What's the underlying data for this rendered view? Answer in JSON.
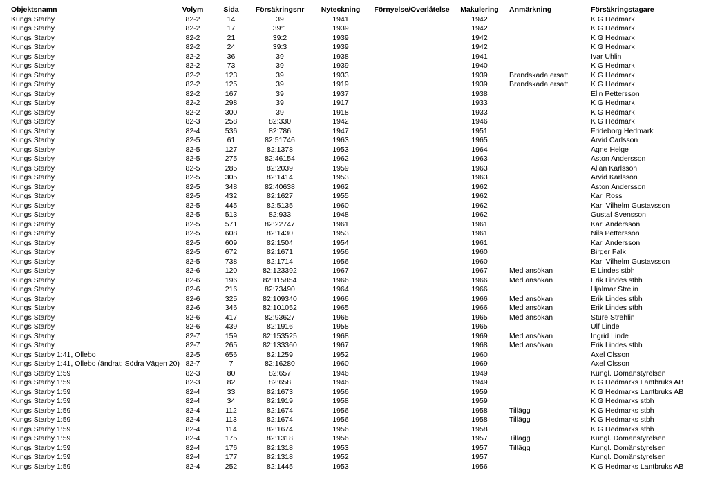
{
  "headers": {
    "obj": "Objektsnamn",
    "vol": "Volym",
    "sida": "Sida",
    "fnr": "Försäkringsnr",
    "nyt": "Nyteckning",
    "for": "Förnyelse/Överlåtelse",
    "mak": "Makulering",
    "anm": "Anmärkning",
    "tag": "Försäkringstagare"
  },
  "rows": [
    {
      "obj": "Kungs Starby",
      "vol": "82-2",
      "sida": "14",
      "fnr": "39",
      "nyt": "1941",
      "for": "",
      "mak": "1942",
      "anm": "",
      "tag": "K G Hedmark"
    },
    {
      "obj": "Kungs Starby",
      "vol": "82-2",
      "sida": "17",
      "fnr": "39:1",
      "nyt": "1939",
      "for": "",
      "mak": "1942",
      "anm": "",
      "tag": "K G Hedmark"
    },
    {
      "obj": "Kungs Starby",
      "vol": "82-2",
      "sida": "21",
      "fnr": "39:2",
      "nyt": "1939",
      "for": "",
      "mak": "1942",
      "anm": "",
      "tag": "K G Hedmark"
    },
    {
      "obj": "Kungs Starby",
      "vol": "82-2",
      "sida": "24",
      "fnr": "39:3",
      "nyt": "1939",
      "for": "",
      "mak": "1942",
      "anm": "",
      "tag": "K G Hedmark"
    },
    {
      "obj": "Kungs Starby",
      "vol": "82-2",
      "sida": "36",
      "fnr": "39",
      "nyt": "1938",
      "for": "",
      "mak": "1941",
      "anm": "",
      "tag": "Ivar Uhlin"
    },
    {
      "obj": "Kungs Starby",
      "vol": "82-2",
      "sida": "73",
      "fnr": "39",
      "nyt": "1939",
      "for": "",
      "mak": "1940",
      "anm": "",
      "tag": "K G Hedmark"
    },
    {
      "obj": "Kungs Starby",
      "vol": "82-2",
      "sida": "123",
      "fnr": "39",
      "nyt": "1933",
      "for": "",
      "mak": "1939",
      "anm": "Brandskada ersatt",
      "tag": "K G Hedmark"
    },
    {
      "obj": "Kungs Starby",
      "vol": "82-2",
      "sida": "125",
      "fnr": "39",
      "nyt": "1919",
      "for": "",
      "mak": "1939",
      "anm": "Brandskada ersatt",
      "tag": "K G Hedmark"
    },
    {
      "obj": "Kungs Starby",
      "vol": "82-2",
      "sida": "167",
      "fnr": "39",
      "nyt": "1937",
      "for": "",
      "mak": "1938",
      "anm": "",
      "tag": "Elin Pettersson"
    },
    {
      "obj": "Kungs Starby",
      "vol": "82-2",
      "sida": "298",
      "fnr": "39",
      "nyt": "1917",
      "for": "",
      "mak": "1933",
      "anm": "",
      "tag": "K G Hedmark"
    },
    {
      "obj": "Kungs Starby",
      "vol": "82-2",
      "sida": "300",
      "fnr": "39",
      "nyt": "1918",
      "for": "",
      "mak": "1933",
      "anm": "",
      "tag": "K G Hedmark"
    },
    {
      "obj": "Kungs Starby",
      "vol": "82-3",
      "sida": "258",
      "fnr": "82:330",
      "nyt": "1942",
      "for": "",
      "mak": "1946",
      "anm": "",
      "tag": "K G Hedmark"
    },
    {
      "obj": "Kungs Starby",
      "vol": "82-4",
      "sida": "536",
      "fnr": "82:786",
      "nyt": "1947",
      "for": "",
      "mak": "1951",
      "anm": "",
      "tag": "Frideborg Hedmark"
    },
    {
      "obj": "Kungs Starby",
      "vol": "82-5",
      "sida": "61",
      "fnr": "82:51746",
      "nyt": "1963",
      "for": "",
      "mak": "1965",
      "anm": "",
      "tag": "Arvid Carlsson"
    },
    {
      "obj": "Kungs Starby",
      "vol": "82-5",
      "sida": "127",
      "fnr": "82:1378",
      "nyt": "1953",
      "for": "",
      "mak": "1964",
      "anm": "",
      "tag": "Agne Helge"
    },
    {
      "obj": "Kungs Starby",
      "vol": "82-5",
      "sida": "275",
      "fnr": "82:46154",
      "nyt": "1962",
      "for": "",
      "mak": "1963",
      "anm": "",
      "tag": "Aston Andersson"
    },
    {
      "obj": "Kungs Starby",
      "vol": "82-5",
      "sida": "285",
      "fnr": "82:2039",
      "nyt": "1959",
      "for": "",
      "mak": "1963",
      "anm": "",
      "tag": "Allan Karlsson"
    },
    {
      "obj": "Kungs Starby",
      "vol": "82-5",
      "sida": "305",
      "fnr": "82:1414",
      "nyt": "1953",
      "for": "",
      "mak": "1963",
      "anm": "",
      "tag": "Arvid Karlsson"
    },
    {
      "obj": "Kungs Starby",
      "vol": "82-5",
      "sida": "348",
      "fnr": "82:40638",
      "nyt": "1962",
      "for": "",
      "mak": "1962",
      "anm": "",
      "tag": "Aston Andersson"
    },
    {
      "obj": "Kungs Starby",
      "vol": "82-5",
      "sida": "432",
      "fnr": "82:1627",
      "nyt": "1955",
      "for": "",
      "mak": "1962",
      "anm": "",
      "tag": "Karl Ross"
    },
    {
      "obj": "Kungs Starby",
      "vol": "82-5",
      "sida": "445",
      "fnr": "82:5135",
      "nyt": "1960",
      "for": "",
      "mak": "1962",
      "anm": "",
      "tag": "Karl Vilhelm Gustavsson"
    },
    {
      "obj": "Kungs Starby",
      "vol": "82-5",
      "sida": "513",
      "fnr": "82:933",
      "nyt": "1948",
      "for": "",
      "mak": "1962",
      "anm": "",
      "tag": "Gustaf Svensson"
    },
    {
      "obj": "Kungs Starby",
      "vol": "82-5",
      "sida": "571",
      "fnr": "82:22747",
      "nyt": "1961",
      "for": "",
      "mak": "1961",
      "anm": "",
      "tag": "Karl Andersson"
    },
    {
      "obj": "Kungs Starby",
      "vol": "82-5",
      "sida": "608",
      "fnr": "82:1430",
      "nyt": "1953",
      "for": "",
      "mak": "1961",
      "anm": "",
      "tag": "Nils Pettersson"
    },
    {
      "obj": "Kungs Starby",
      "vol": "82-5",
      "sida": "609",
      "fnr": "82:1504",
      "nyt": "1954",
      "for": "",
      "mak": "1961",
      "anm": "",
      "tag": "Karl Andersson"
    },
    {
      "obj": "Kungs Starby",
      "vol": "82-5",
      "sida": "672",
      "fnr": "82:1671",
      "nyt": "1956",
      "for": "",
      "mak": "1960",
      "anm": "",
      "tag": "Birger Falk"
    },
    {
      "obj": "Kungs Starby",
      "vol": "82-5",
      "sida": "738",
      "fnr": "82:1714",
      "nyt": "1956",
      "for": "",
      "mak": "1960",
      "anm": "",
      "tag": "Karl Vilhelm Gustavsson"
    },
    {
      "obj": "Kungs Starby",
      "vol": "82-6",
      "sida": "120",
      "fnr": "82:123392",
      "nyt": "1967",
      "for": "",
      "mak": "1967",
      "anm": "Med ansökan",
      "tag": "E Lindes stbh"
    },
    {
      "obj": "Kungs Starby",
      "vol": "82-6",
      "sida": "196",
      "fnr": "82:115854",
      "nyt": "1966",
      "for": "",
      "mak": "1966",
      "anm": "Med ansökan",
      "tag": "Erik Lindes stbh"
    },
    {
      "obj": "Kungs Starby",
      "vol": "82-6",
      "sida": "216",
      "fnr": "82:73490",
      "nyt": "1964",
      "for": "",
      "mak": "1966",
      "anm": "",
      "tag": "Hjalmar Strelin"
    },
    {
      "obj": "Kungs Starby",
      "vol": "82-6",
      "sida": "325",
      "fnr": "82:109340",
      "nyt": "1966",
      "for": "",
      "mak": "1966",
      "anm": "Med ansökan",
      "tag": "Erik Lindes stbh"
    },
    {
      "obj": "Kungs Starby",
      "vol": "82-6",
      "sida": "346",
      "fnr": "82:101052",
      "nyt": "1965",
      "for": "",
      "mak": "1966",
      "anm": "Med ansökan",
      "tag": "Erik Lindes stbh"
    },
    {
      "obj": "Kungs Starby",
      "vol": "82-6",
      "sida": "417",
      "fnr": "82:93627",
      "nyt": "1965",
      "for": "",
      "mak": "1965",
      "anm": "Med ansökan",
      "tag": "Sture Strehlin"
    },
    {
      "obj": "Kungs Starby",
      "vol": "82-6",
      "sida": "439",
      "fnr": "82:1916",
      "nyt": "1958",
      "for": "",
      "mak": "1965",
      "anm": "",
      "tag": "Ulf Linde"
    },
    {
      "obj": "Kungs Starby",
      "vol": "82-7",
      "sida": "159",
      "fnr": "82:153525",
      "nyt": "1968",
      "for": "",
      "mak": "1969",
      "anm": "Med ansökan",
      "tag": "Ingrid Linde"
    },
    {
      "obj": "Kungs Starby",
      "vol": "82-7",
      "sida": "265",
      "fnr": "82:133360",
      "nyt": "1967",
      "for": "",
      "mak": "1968",
      "anm": "Med ansökan",
      "tag": "Erik Lindes stbh"
    },
    {
      "obj": "Kungs Starby 1:41, Ollebo",
      "vol": "82-5",
      "sida": "656",
      "fnr": "82:1259",
      "nyt": "1952",
      "for": "",
      "mak": "1960",
      "anm": "",
      "tag": "Axel Olsson"
    },
    {
      "obj": "Kungs Starby 1:41, Ollebo (ändrat: Södra Vägen 20)",
      "vol": "82-7",
      "sida": "7",
      "fnr": "82:16280",
      "nyt": "1960",
      "for": "",
      "mak": "1969",
      "anm": "",
      "tag": "Axel Olsson"
    },
    {
      "obj": "Kungs Starby 1:59",
      "vol": "82-3",
      "sida": "80",
      "fnr": "82:657",
      "nyt": "1946",
      "for": "",
      "mak": "1949",
      "anm": "",
      "tag": "Kungl. Domänstyrelsen"
    },
    {
      "obj": "Kungs Starby 1:59",
      "vol": "82-3",
      "sida": "82",
      "fnr": "82:658",
      "nyt": "1946",
      "for": "",
      "mak": "1949",
      "anm": "",
      "tag": "K G Hedmarks Lantbruks AB"
    },
    {
      "obj": "Kungs Starby 1:59",
      "vol": "82-4",
      "sida": "33",
      "fnr": "82:1673",
      "nyt": "1956",
      "for": "",
      "mak": "1959",
      "anm": "",
      "tag": "K G Hedmarks Lantbruks AB"
    },
    {
      "obj": "Kungs Starby 1:59",
      "vol": "82-4",
      "sida": "34",
      "fnr": "82:1919",
      "nyt": "1958",
      "for": "",
      "mak": "1959",
      "anm": "",
      "tag": "K G Hedmarks stbh"
    },
    {
      "obj": "Kungs Starby 1:59",
      "vol": "82-4",
      "sida": "112",
      "fnr": "82:1674",
      "nyt": "1956",
      "for": "",
      "mak": "1958",
      "anm": "Tillägg",
      "tag": "K G Hedmarks stbh"
    },
    {
      "obj": "Kungs Starby 1:59",
      "vol": "82-4",
      "sida": "113",
      "fnr": "82:1674",
      "nyt": "1956",
      "for": "",
      "mak": "1958",
      "anm": "Tillägg",
      "tag": "K G Hedmarks stbh"
    },
    {
      "obj": "Kungs Starby 1:59",
      "vol": "82-4",
      "sida": "114",
      "fnr": "82:1674",
      "nyt": "1956",
      "for": "",
      "mak": "1958",
      "anm": "",
      "tag": "K G Hedmarks stbh"
    },
    {
      "obj": "Kungs Starby 1:59",
      "vol": "82-4",
      "sida": "175",
      "fnr": "82:1318",
      "nyt": "1956",
      "for": "",
      "mak": "1957",
      "anm": "Tillägg",
      "tag": "Kungl. Domänstyrelsen"
    },
    {
      "obj": "Kungs Starby 1:59",
      "vol": "82-4",
      "sida": "176",
      "fnr": "82:1318",
      "nyt": "1953",
      "for": "",
      "mak": "1957",
      "anm": "Tillägg",
      "tag": "Kungl. Domänstyrelsen"
    },
    {
      "obj": "Kungs Starby 1:59",
      "vol": "82-4",
      "sida": "177",
      "fnr": "82:1318",
      "nyt": "1952",
      "for": "",
      "mak": "1957",
      "anm": "",
      "tag": "Kungl. Domänstyrelsen"
    },
    {
      "obj": "Kungs Starby 1:59",
      "vol": "82-4",
      "sida": "252",
      "fnr": "82:1445",
      "nyt": "1953",
      "for": "",
      "mak": "1956",
      "anm": "",
      "tag": "K G Hedmarks Lantbruks AB"
    }
  ]
}
